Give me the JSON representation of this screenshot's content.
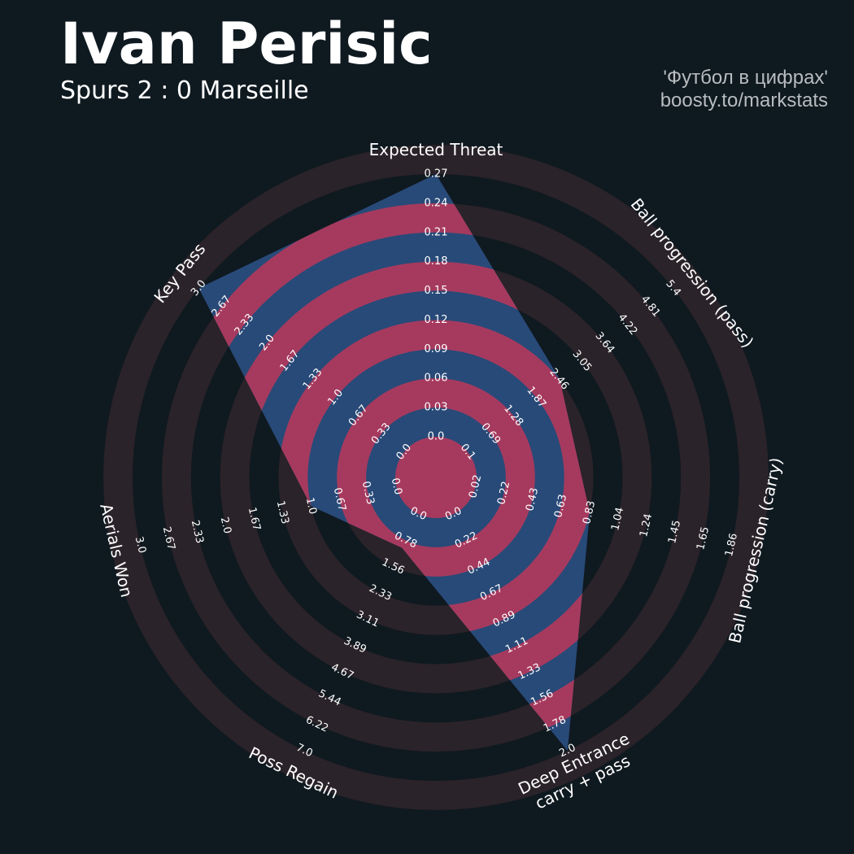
{
  "header": {
    "title": "Ivan Perisic",
    "subtitle": "Spurs 2 : 0 Marseille",
    "credit_line1": "'Футбол в цифрах'",
    "credit_line2": "boosty.to/markstats"
  },
  "colors": {
    "background": "#0f1920",
    "ring_fill": "#2a2329",
    "player_fill": "#284a78",
    "player_ring_highlight": "#a63a5e",
    "text": "#ffffff",
    "credit_text": "#b8bcc0"
  },
  "chart_data": {
    "type": "radar",
    "params": [
      {
        "name": "Expected Threat",
        "range_labels": [
          "0.0",
          "0.03",
          "0.06",
          "0.09",
          "0.12",
          "0.15",
          "0.18",
          "0.21",
          "0.24",
          "0.27"
        ],
        "value": 0.27
      },
      {
        "name": "Ball progression (pass)",
        "range_labels": [
          "0.1",
          "0.69",
          "1.28",
          "1.87",
          "2.46",
          "3.05",
          "3.64",
          "4.22",
          "4.81",
          "5.4"
        ],
        "value": 2.47
      },
      {
        "name": "Ball progression (carry)",
        "range_labels": [
          "0.02",
          "0.22",
          "0.43",
          "0.63",
          "0.83",
          "1.04",
          "1.24",
          "1.45",
          "1.65",
          "1.86"
        ],
        "value": 0.84
      },
      {
        "name": "Deep Entrance\ncarry + pass",
        "range_labels": [
          "0.0",
          "0.22",
          "0.44",
          "0.67",
          "0.89",
          "1.11",
          "1.33",
          "1.56",
          "1.78",
          "2.0"
        ],
        "value": 2.0
      },
      {
        "name": "Poss Regain",
        "range_labels": [
          "0.0",
          "0.78",
          "1.56",
          "2.33",
          "3.11",
          "3.89",
          "4.67",
          "5.44",
          "6.22",
          "7.0"
        ],
        "value": 1.0
      },
      {
        "name": "Aerials Won",
        "range_labels": [
          "0.0",
          "0.33",
          "0.67",
          "1.0",
          "1.33",
          "1.67",
          "2.0",
          "2.33",
          "2.67",
          "3.0"
        ],
        "value": 1.0
      },
      {
        "name": "Key Pass",
        "range_labels": [
          "0.0",
          "0.33",
          "0.67",
          "1.0",
          "1.33",
          "1.67",
          "2.0",
          "2.33",
          "2.67",
          "3.0"
        ],
        "value": 3.0
      }
    ]
  }
}
